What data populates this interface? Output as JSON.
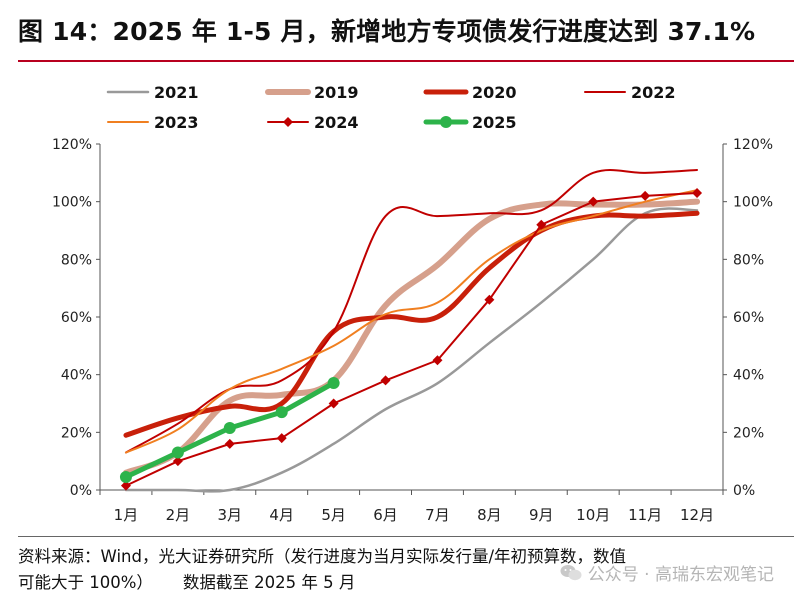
{
  "title": "图 14：2025 年 1-5 月，新增地方专项债发行进度达到 37.1%",
  "note": {
    "line1": "资料来源：Wind，光大证券研究所（发行进度为当月实际发行量/年初预算数，数值",
    "line2a": "可能大于 100%）",
    "line2b": "数据截至 2025 年 5 月"
  },
  "watermark": "公众号 · 高瑞东宏观笔记",
  "chart_data": {
    "type": "line",
    "categories": [
      "1月",
      "2月",
      "3月",
      "4月",
      "5月",
      "6月",
      "7月",
      "8月",
      "9月",
      "10月",
      "11月",
      "12月"
    ],
    "ylim": [
      0,
      120
    ],
    "yticks": [
      "0%",
      "20%",
      "40%",
      "60%",
      "80%",
      "100%",
      "120%"
    ],
    "ytick_values": [
      0,
      20,
      40,
      60,
      80,
      100,
      120
    ],
    "grid": false,
    "legend": "top",
    "series": [
      {
        "name": "2021",
        "color": "#999999",
        "width": 2.5,
        "marker": "none",
        "values": [
          0,
          0,
          0,
          6,
          16,
          28,
          37,
          51,
          65,
          80,
          96,
          97
        ]
      },
      {
        "name": "2019",
        "color": "#d6a08c",
        "width": 6,
        "marker": "none",
        "values": [
          6,
          13,
          31,
          33,
          38,
          64,
          78,
          94,
          99,
          99,
          99,
          100
        ]
      },
      {
        "name": "2020",
        "color": "#c8200a",
        "width": 5,
        "marker": "none",
        "values": [
          19,
          25,
          29,
          30,
          55,
          60,
          60,
          77,
          90,
          95,
          95,
          96
        ]
      },
      {
        "name": "2022",
        "color": "#c00000",
        "width": 2,
        "marker": "none",
        "values": [
          13,
          23,
          35,
          38,
          55,
          95,
          95,
          96,
          97,
          110,
          110,
          111
        ]
      },
      {
        "name": "2023",
        "color": "#f07f20",
        "width": 2,
        "marker": "none",
        "values": [
          13,
          21,
          35,
          42,
          50,
          61,
          65,
          80,
          90,
          95,
          100,
          104
        ]
      },
      {
        "name": "2024",
        "color": "#c00000",
        "width": 2,
        "marker": "diamond",
        "values": [
          1.5,
          10,
          16,
          18,
          30,
          38,
          45,
          66,
          92,
          100,
          102,
          103
        ]
      },
      {
        "name": "2025",
        "color": "#2db34a",
        "width": 5,
        "marker": "circle",
        "values": [
          4.5,
          13,
          21.5,
          27,
          37.1,
          null,
          null,
          null,
          null,
          null,
          null,
          null
        ]
      }
    ]
  }
}
